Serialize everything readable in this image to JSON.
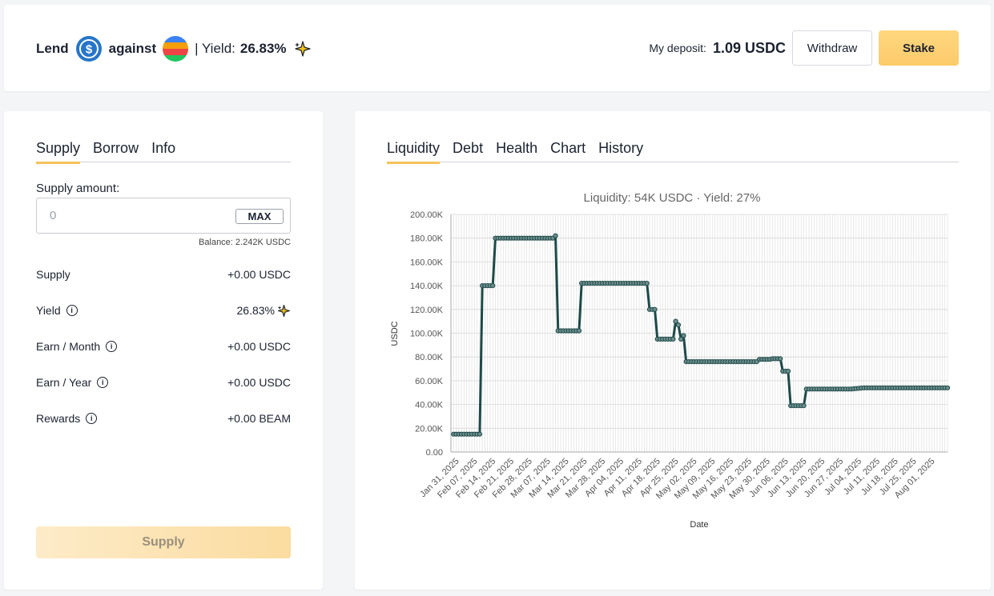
{
  "header": {
    "lend_word": "Lend",
    "against_word": "against",
    "yield_label": "| Yield:",
    "yield_value": "26.83%",
    "deposit_label": "My deposit:",
    "deposit_value": "1.09 USDC",
    "withdraw_label": "Withdraw",
    "stake_label": "Stake",
    "icons": [
      "usdc-token-icon",
      "beam-token-icon",
      "sparkle-icon"
    ]
  },
  "left_tabs": [
    "Supply",
    "Borrow",
    "Info"
  ],
  "supply_form": {
    "amount_label": "Supply amount:",
    "amount_placeholder": "0",
    "max_label": "MAX",
    "balance": "Balance: 2.242K USDC",
    "rows": [
      {
        "label": "Supply",
        "value": "+0.00 USDC"
      },
      {
        "label": "Yield",
        "value": "26.83%"
      },
      {
        "label": "Earn / Month",
        "value": "+0.00 USDC"
      },
      {
        "label": "Earn / Year",
        "value": "+0.00 USDC"
      },
      {
        "label": "Rewards",
        "value": "+0.00 BEAM"
      }
    ],
    "submit_label": "Supply"
  },
  "right_tabs": [
    "Liquidity",
    "Debt",
    "Health",
    "Chart",
    "History"
  ],
  "colors": {
    "accent": "#f7c25a",
    "line": "#1d4a48",
    "usdc": "#2775ca"
  },
  "chart_data": {
    "type": "line",
    "title": "Liquidity: 54K USDC · Yield: 27%",
    "xlabel": "Date",
    "ylabel": "USDC",
    "ylim": [
      0,
      200000
    ],
    "yticks": [
      "0.00",
      "20.00K",
      "40.00K",
      "60.00K",
      "80.00K",
      "100.00K",
      "120.00K",
      "140.00K",
      "160.00K",
      "180.00K",
      "200.00K"
    ],
    "xticks": [
      "Jan 31, 2025",
      "Feb 07, 2025",
      "Feb 14, 2025",
      "Feb 21, 2025",
      "Feb 28, 2025",
      "Mar 07, 2025",
      "Mar 14, 2025",
      "Mar 21, 2025",
      "Mar 28, 2025",
      "Apr 04, 2025",
      "Apr 11, 2025",
      "Apr 18, 2025",
      "Apr 25, 2025",
      "May 02, 2025",
      "May 09, 2025",
      "May 16, 2025",
      "May 23, 2025",
      "May 30, 2025",
      "Jun 06, 2025",
      "Jun 13, 2025",
      "Jun 20, 2025",
      "Jun 27, 2025",
      "Jul 04, 2025",
      "Jul 11, 2025",
      "Jul 18, 2025",
      "Jul 25, 2025",
      "Aug 01, 2025"
    ],
    "grid": true,
    "series": [
      {
        "points": [
          [
            "2025-01-30",
            15000
          ],
          [
            "2025-02-09",
            15000
          ],
          [
            "2025-02-10",
            140000
          ],
          [
            "2025-02-14",
            140000
          ],
          [
            "2025-02-15",
            180000
          ],
          [
            "2025-03-09",
            180000
          ],
          [
            "2025-03-10",
            182000
          ],
          [
            "2025-03-11",
            102000
          ],
          [
            "2025-03-19",
            102000
          ],
          [
            "2025-03-20",
            142000
          ],
          [
            "2025-04-14",
            142000
          ],
          [
            "2025-04-15",
            120000
          ],
          [
            "2025-04-17",
            120000
          ],
          [
            "2025-04-18",
            95000
          ],
          [
            "2025-04-24",
            95000
          ],
          [
            "2025-04-25",
            110000
          ],
          [
            "2025-04-26",
            107000
          ],
          [
            "2025-04-27",
            95000
          ],
          [
            "2025-04-28",
            98000
          ],
          [
            "2025-04-29",
            76000
          ],
          [
            "2025-05-26",
            76000
          ],
          [
            "2025-05-27",
            78000
          ],
          [
            "2025-05-31",
            78000
          ],
          [
            "2025-06-01",
            78500
          ],
          [
            "2025-06-04",
            78500
          ],
          [
            "2025-06-05",
            68000
          ],
          [
            "2025-06-07",
            68000
          ],
          [
            "2025-06-08",
            39000
          ],
          [
            "2025-06-13",
            39000
          ],
          [
            "2025-06-14",
            53000
          ],
          [
            "2025-07-01",
            53000
          ],
          [
            "2025-07-06",
            54000
          ],
          [
            "2025-08-07",
            54000
          ]
        ]
      }
    ]
  }
}
